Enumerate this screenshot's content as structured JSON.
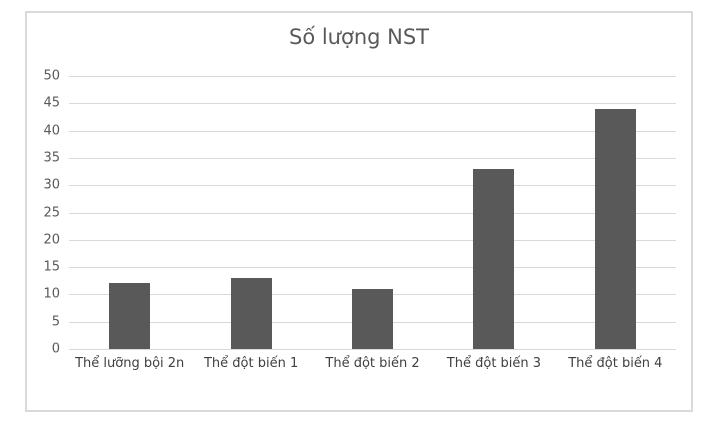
{
  "chart_data": {
    "type": "bar",
    "title": "Số lượng NST",
    "categories": [
      "Thể lưỡng bội 2n",
      "Thể đột biến 1",
      "Thể đột biến 2",
      "Thể đột biến 3",
      "Thể đột biến 4"
    ],
    "values": [
      12,
      13,
      11,
      33,
      44
    ],
    "xlabel": "",
    "ylabel": "",
    "ylim": [
      0,
      50
    ],
    "yticks": [
      0,
      5,
      10,
      15,
      20,
      25,
      30,
      35,
      40,
      45,
      50
    ],
    "grid": true,
    "legend_position": "none",
    "bar_color": "#595959",
    "gridline_color": "#d9d9d9",
    "title_color": "#595959",
    "tick_label_color": "#595959",
    "category_label_color": "#404040",
    "border_color": "#d9d9d9",
    "background_color": "#ffffff"
  }
}
